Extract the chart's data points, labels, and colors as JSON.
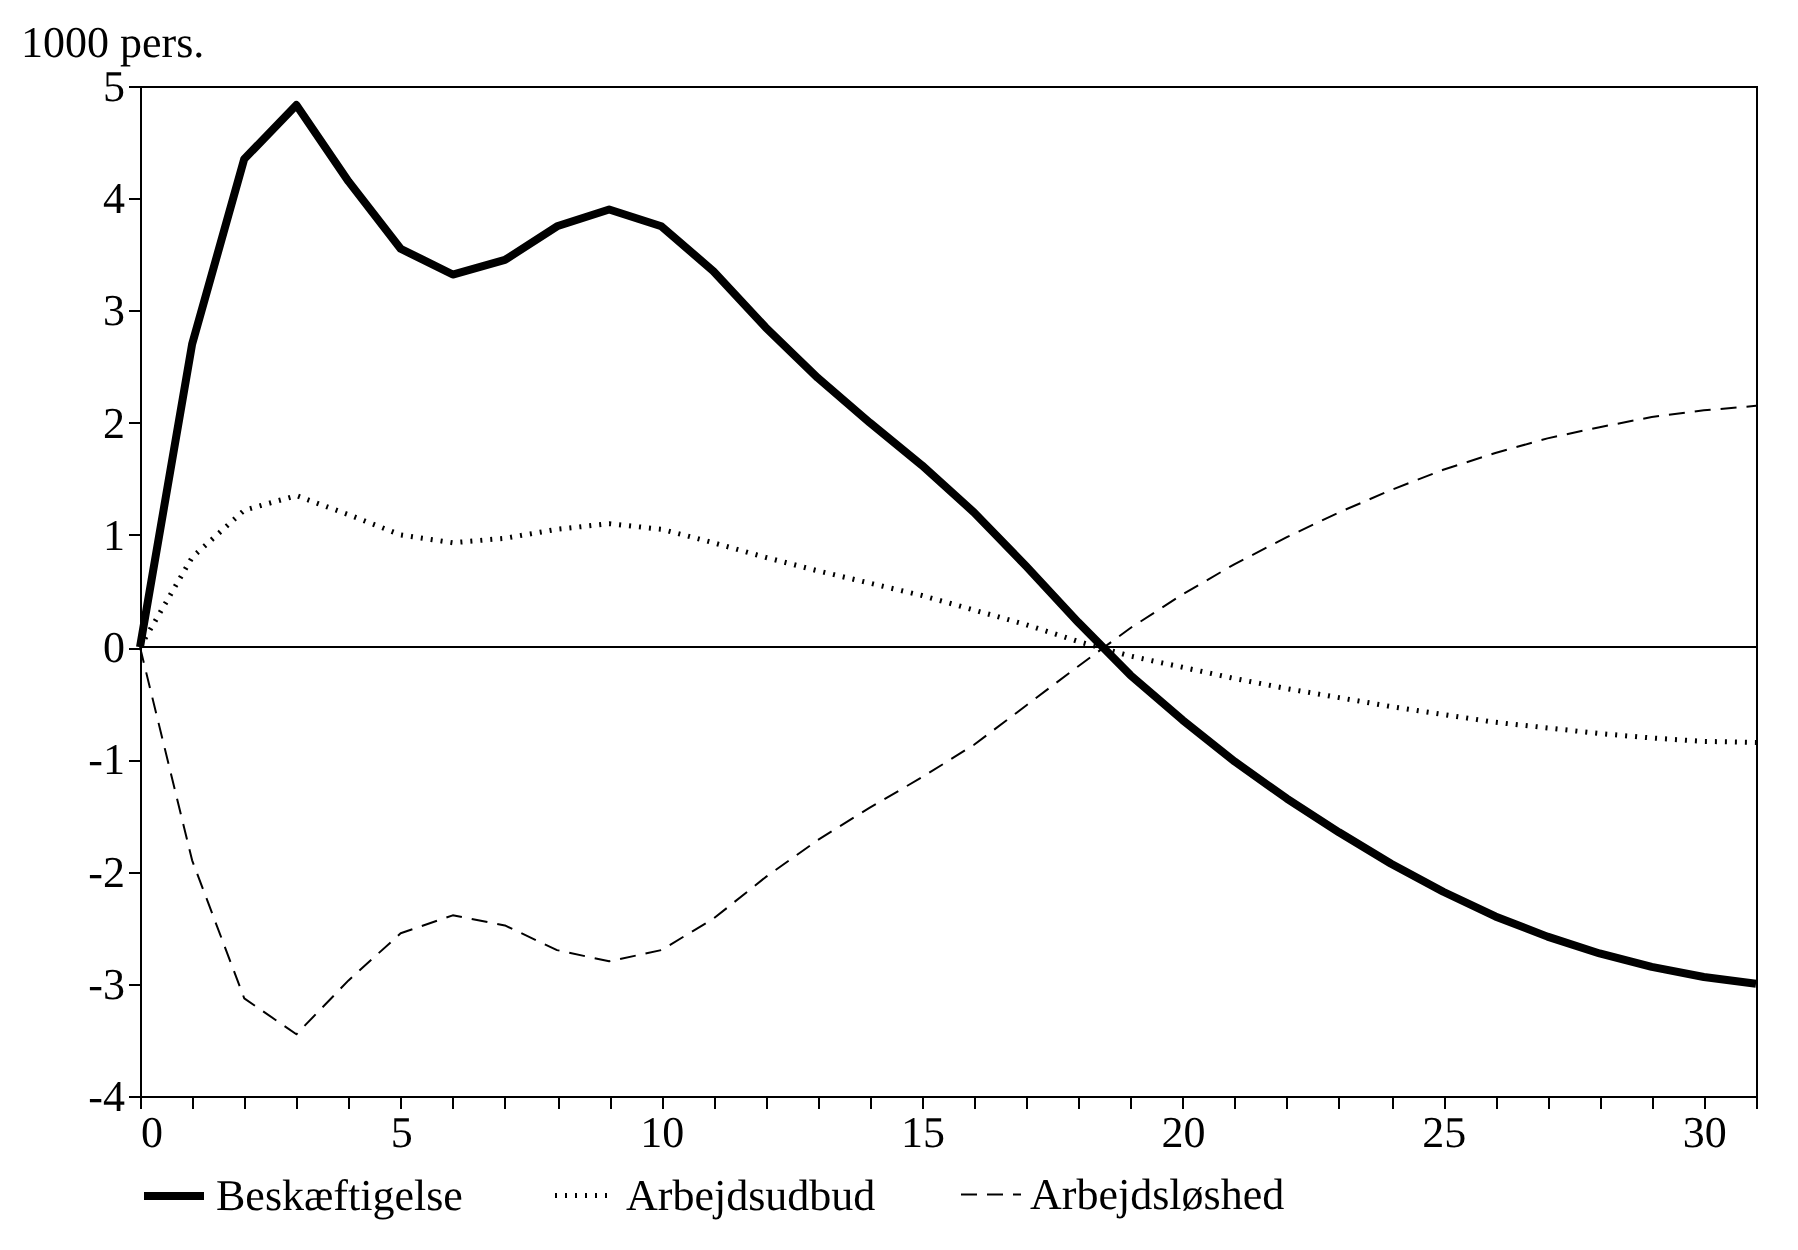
{
  "chart_data": {
    "type": "line",
    "ylabel": "1000 pers.",
    "x": [
      0,
      1,
      2,
      3,
      4,
      5,
      6,
      7,
      8,
      9,
      10,
      11,
      12,
      13,
      14,
      15,
      16,
      17,
      18,
      19,
      20,
      21,
      22,
      23,
      24,
      25,
      26,
      27,
      28,
      29,
      30,
      31
    ],
    "series": [
      {
        "name": "Beskæftigelse",
        "color": "#000000",
        "line_style": "solid",
        "values": [
          0,
          2.7,
          4.35,
          4.83,
          4.15,
          3.55,
          3.32,
          3.45,
          3.75,
          3.9,
          3.75,
          3.35,
          2.85,
          2.4,
          2.0,
          1.62,
          1.2,
          0.72,
          0.22,
          -0.25,
          -0.65,
          -1.02,
          -1.35,
          -1.65,
          -1.93,
          -2.18,
          -2.4,
          -2.58,
          -2.73,
          -2.85,
          -2.94,
          -3.0
        ]
      },
      {
        "name": "Arbejdsudbud",
        "color": "#000000",
        "line_style": "dotted",
        "values": [
          0,
          0.8,
          1.22,
          1.35,
          1.18,
          1.0,
          0.93,
          0.97,
          1.05,
          1.1,
          1.05,
          0.93,
          0.8,
          0.68,
          0.57,
          0.46,
          0.33,
          0.2,
          0.05,
          -0.08,
          -0.18,
          -0.28,
          -0.37,
          -0.45,
          -0.53,
          -0.6,
          -0.67,
          -0.72,
          -0.77,
          -0.81,
          -0.84,
          -0.85
        ]
      },
      {
        "name": "Arbejdsløshed",
        "color": "#000000",
        "line_style": "dashed",
        "values": [
          0,
          -1.9,
          -3.13,
          -3.45,
          -2.97,
          -2.55,
          -2.39,
          -2.48,
          -2.7,
          -2.8,
          -2.7,
          -2.42,
          -2.05,
          -1.72,
          -1.43,
          -1.16,
          -0.87,
          -0.52,
          -0.17,
          0.17,
          0.47,
          0.74,
          0.98,
          1.2,
          1.4,
          1.58,
          1.73,
          1.86,
          1.96,
          2.05,
          2.11,
          2.15
        ]
      }
    ],
    "xlim": [
      0,
      31
    ],
    "xticks": [
      0,
      {
        "value": 1,
        "label": null
      },
      {
        "value": 2,
        "label": null
      },
      {
        "value": 3,
        "label": null
      },
      {
        "value": 4,
        "label": null
      },
      5,
      {
        "value": 6,
        "label": null
      },
      {
        "value": 7,
        "label": null
      },
      {
        "value": 8,
        "label": null
      },
      {
        "value": 9,
        "label": null
      },
      10,
      {
        "value": 11,
        "label": null
      },
      {
        "value": 12,
        "label": null
      },
      {
        "value": 13,
        "label": null
      },
      {
        "value": 14,
        "label": null
      },
      15,
      {
        "value": 16,
        "label": null
      },
      {
        "value": 17,
        "label": null
      },
      {
        "value": 18,
        "label": null
      },
      {
        "value": 19,
        "label": null
      },
      20,
      {
        "value": 21,
        "label": null
      },
      {
        "value": 22,
        "label": null
      },
      {
        "value": 23,
        "label": null
      },
      {
        "value": 24,
        "label": null
      },
      25,
      {
        "value": 26,
        "label": null
      },
      {
        "value": 27,
        "label": null
      },
      {
        "value": 28,
        "label": null
      },
      {
        "value": 29,
        "label": null
      },
      30,
      {
        "value": 31,
        "label": null
      }
    ],
    "ylim": [
      -4,
      5
    ],
    "yticks": [
      -4,
      -3,
      -2,
      -1,
      0,
      1,
      2,
      3,
      4,
      5
    ],
    "ref_lines": [
      {
        "axis": "y",
        "value": 0,
        "label": null
      }
    ],
    "grid": false,
    "legend": "bottom",
    "marker": "none"
  }
}
